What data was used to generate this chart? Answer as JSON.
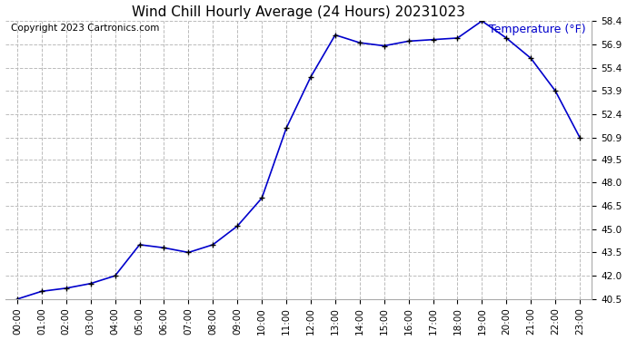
{
  "title": "Wind Chill Hourly Average (24 Hours) 20231023",
  "copyright_text": "Copyright 2023 Cartronics.com",
  "legend_label": "Temperature (°F)",
  "x_labels": [
    "00:00",
    "01:00",
    "02:00",
    "03:00",
    "04:00",
    "05:00",
    "06:00",
    "07:00",
    "08:00",
    "09:00",
    "10:00",
    "11:00",
    "12:00",
    "13:00",
    "14:00",
    "15:00",
    "16:00",
    "17:00",
    "18:00",
    "19:00",
    "20:00",
    "21:00",
    "22:00",
    "23:00"
  ],
  "y_values": [
    40.5,
    41.0,
    41.2,
    41.5,
    42.0,
    44.0,
    43.8,
    43.5,
    44.0,
    45.2,
    47.0,
    51.5,
    54.8,
    57.5,
    57.0,
    56.8,
    57.1,
    57.2,
    57.3,
    58.4,
    57.3,
    56.0,
    53.9,
    50.9
  ],
  "ylim_min": 40.5,
  "ylim_max": 58.4,
  "yticks": [
    40.5,
    42.0,
    43.5,
    45.0,
    46.5,
    48.0,
    49.5,
    50.9,
    52.4,
    53.9,
    55.4,
    56.9,
    58.4
  ],
  "line_color": "#0000cc",
  "marker": "+",
  "marker_color": "#000000",
  "marker_size": 5,
  "linewidth": 1.2,
  "bg_color": "#ffffff",
  "plot_bg_color": "#ffffff",
  "grid_color": "#bbbbbb",
  "grid_linestyle": "--",
  "title_fontsize": 11,
  "tick_fontsize": 7.5,
  "legend_color": "#0000cc",
  "legend_fontsize": 9,
  "copyright_color": "#000000",
  "copyright_fontsize": 7.5
}
